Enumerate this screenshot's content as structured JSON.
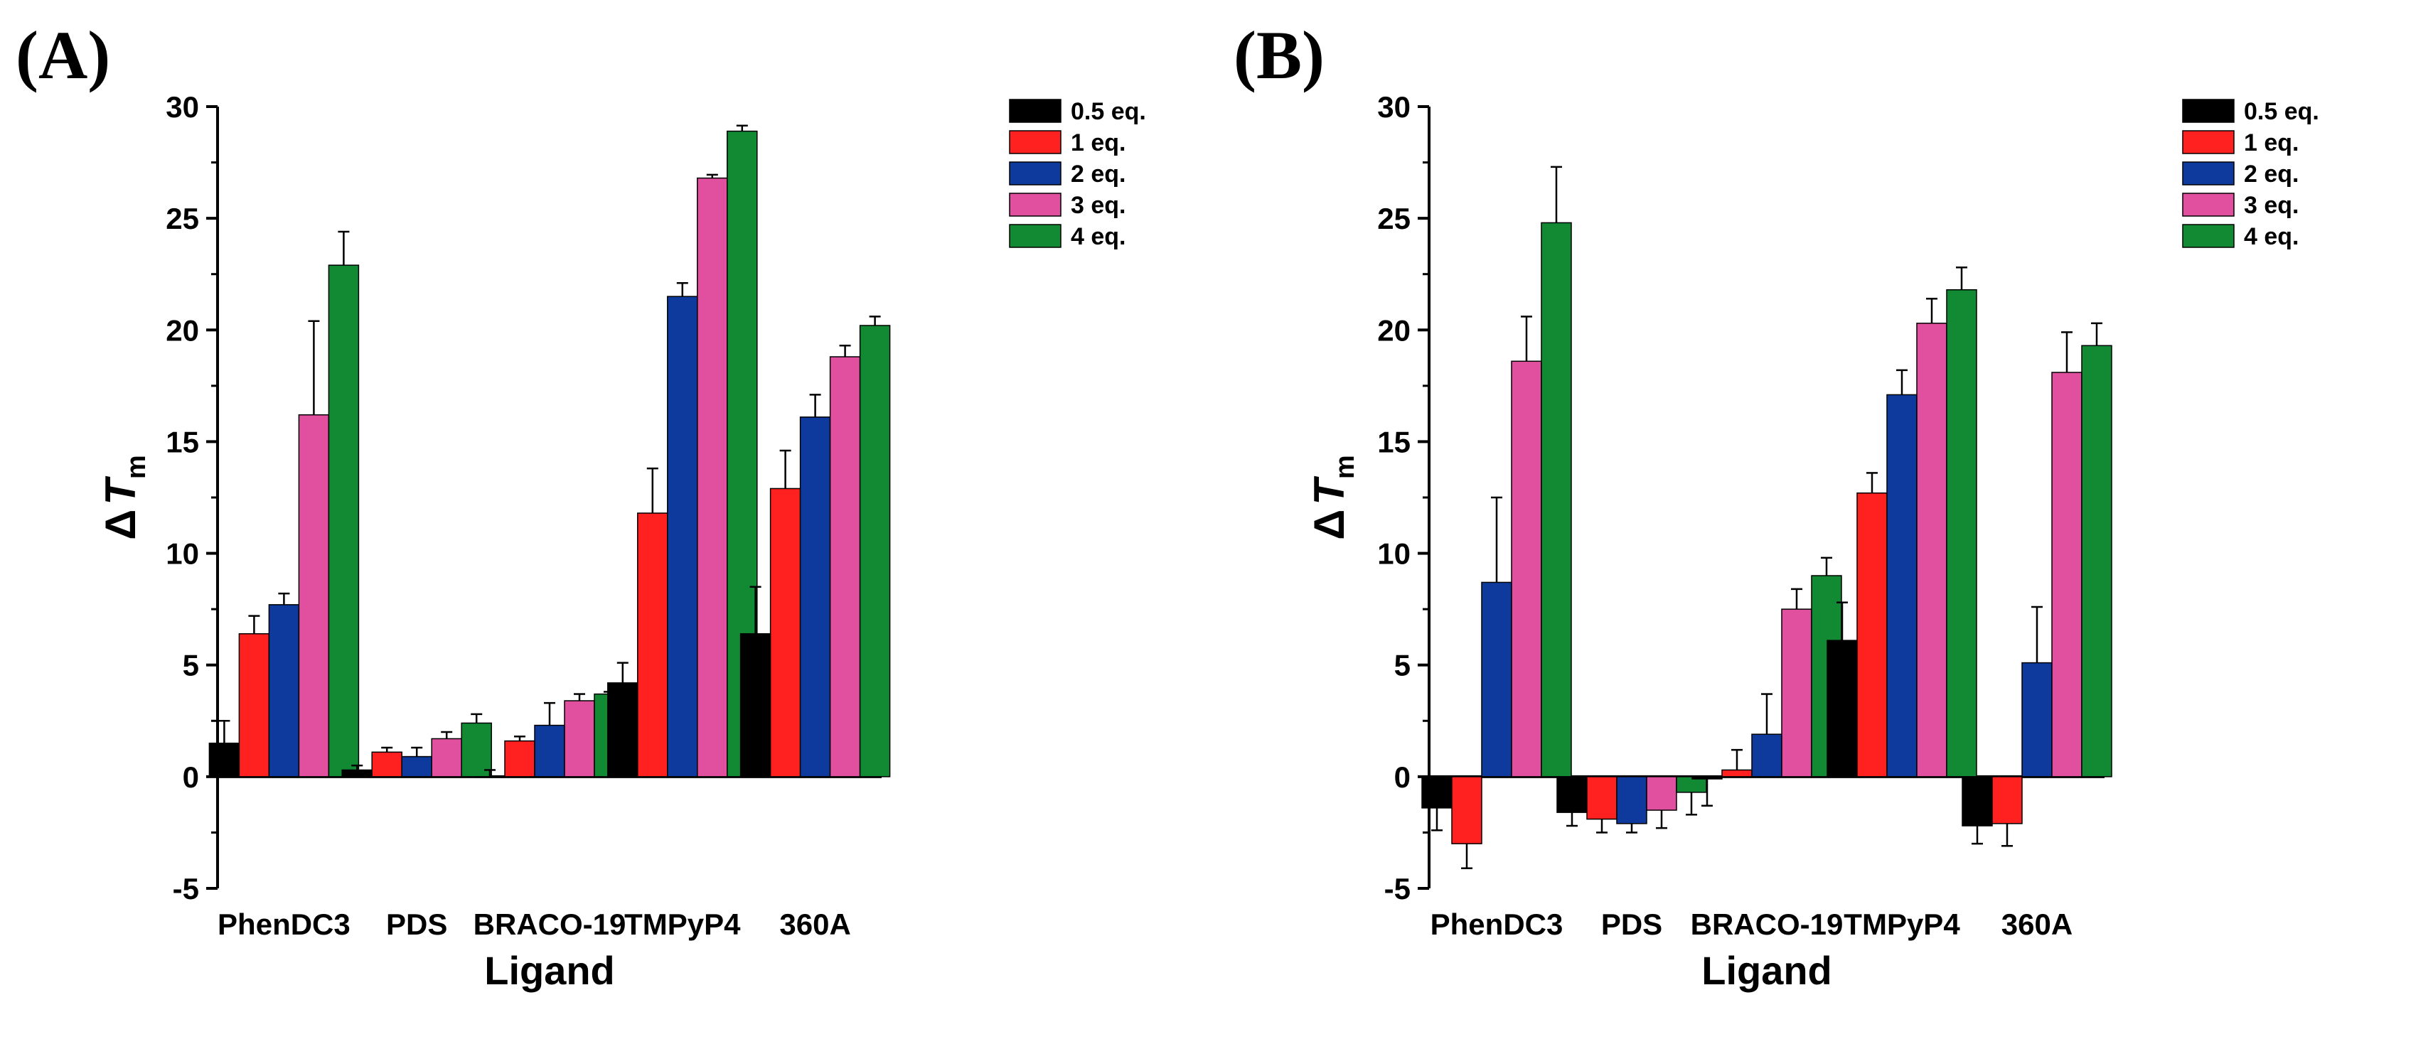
{
  "figure": {
    "panels": [
      "(A)",
      "(B)"
    ]
  },
  "chart_data": [
    {
      "type": "bar",
      "panel": "(A)",
      "title": "",
      "xlabel": "Ligand",
      "ylabel": {
        "prefix": "Δ",
        "var": "T",
        "sub": "m"
      },
      "ylim": [
        -5,
        30
      ],
      "yticks": [
        "-5",
        "0",
        "5",
        "10",
        "15",
        "20",
        "25",
        "30"
      ],
      "grid": false,
      "legend_position": "top-right",
      "categories": [
        "PhenDC3",
        "PDS",
        "BRACO-19",
        "TMPyP4",
        "360A"
      ],
      "series": [
        {
          "name": "0.5 eq.",
          "color": "#000000",
          "values": [
            1.5,
            0.3,
            0.0,
            4.2,
            6.4
          ],
          "errors": [
            1.0,
            0.2,
            0.3,
            0.9,
            2.1
          ]
        },
        {
          "name": "1 eq.",
          "color": "#ff2020",
          "values": [
            6.4,
            1.1,
            1.6,
            11.8,
            12.9
          ],
          "errors": [
            0.8,
            0.2,
            0.2,
            2.0,
            1.7
          ]
        },
        {
          "name": "2 eq.",
          "color": "#0d3a9c",
          "values": [
            7.7,
            0.9,
            2.3,
            21.5,
            16.1
          ],
          "errors": [
            0.5,
            0.4,
            1.0,
            0.6,
            1.0
          ]
        },
        {
          "name": "3 eq.",
          "color": "#e0509e",
          "values": [
            16.2,
            1.7,
            3.4,
            26.8,
            18.8
          ],
          "errors": [
            4.2,
            0.3,
            0.3,
            0.15,
            0.5
          ]
        },
        {
          "name": "4 eq.",
          "color": "#118a33",
          "values": [
            22.9,
            2.4,
            3.7,
            28.9,
            20.2
          ],
          "errors": [
            1.5,
            0.4,
            0.1,
            0.25,
            0.4
          ]
        }
      ]
    },
    {
      "type": "bar",
      "panel": "(B)",
      "title": "",
      "xlabel": "Ligand",
      "ylabel": {
        "prefix": "Δ",
        "var": "T",
        "sub": "m"
      },
      "ylim": [
        -5,
        30
      ],
      "yticks": [
        "-5",
        "0",
        "5",
        "10",
        "15",
        "20",
        "25",
        "30"
      ],
      "grid": false,
      "legend_position": "top-right",
      "categories": [
        "PhenDC3",
        "PDS",
        "BRACO-19",
        "TMPyP4",
        "360A"
      ],
      "series": [
        {
          "name": "0.5 eq.",
          "color": "#000000",
          "values": [
            -1.4,
            -1.6,
            -0.1,
            6.1,
            -2.2
          ],
          "errors": [
            1.0,
            0.6,
            1.2,
            1.7,
            0.8
          ]
        },
        {
          "name": "1 eq.",
          "color": "#ff2020",
          "values": [
            -3.0,
            -1.9,
            0.3,
            12.7,
            -2.1
          ],
          "errors": [
            1.1,
            0.6,
            0.9,
            0.9,
            1.0
          ]
        },
        {
          "name": "2 eq.",
          "color": "#0d3a9c",
          "values": [
            8.7,
            -2.1,
            1.9,
            17.1,
            5.1
          ],
          "errors": [
            3.8,
            0.4,
            1.8,
            1.1,
            2.5
          ]
        },
        {
          "name": "3 eq.",
          "color": "#e0509e",
          "values": [
            18.6,
            -1.5,
            7.5,
            20.3,
            18.1
          ],
          "errors": [
            2.0,
            0.8,
            0.9,
            1.1,
            1.8
          ]
        },
        {
          "name": "4 eq.",
          "color": "#118a33",
          "values": [
            24.8,
            -0.7,
            9.0,
            21.8,
            19.3
          ],
          "errors": [
            2.5,
            1.0,
            0.8,
            1.0,
            1.0
          ]
        }
      ]
    }
  ]
}
